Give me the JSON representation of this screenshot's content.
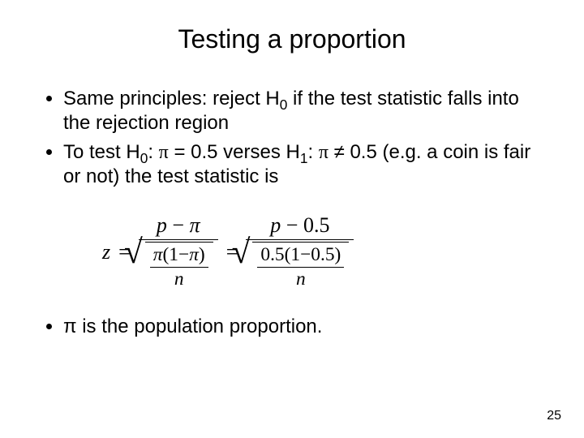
{
  "title": "Testing a proportion",
  "bullets": {
    "b1a": "Same principles: reject H",
    "b1sub": "0",
    "b1b": " if the test statistic falls into the rejection region",
    "b2a": "To test H",
    "b2sub1": "0",
    "b2b": ": ",
    "b2pi1": "π",
    "b2c": " = 0.5 verses H",
    "b2sub2": "1",
    "b2d": ": ",
    "b2pi2": "π",
    "b2ne": " ≠ ",
    "b2e": "0.5 (e.g. a coin is fair or not) the test statistic is",
    "b3a": "π is the population proportion."
  },
  "formula": {
    "z": "z",
    "eq": "=",
    "num1a": "p",
    "minus": "−",
    "num1b": "π",
    "den1a": "π",
    "den1b": "(1−",
    "den1c": "π",
    "den1d": ")",
    "n": "n",
    "num2a": "p",
    "num2b": "0.5",
    "den2a": "0.5(1−0.5)"
  },
  "slidenum": "25",
  "colors": {
    "bg": "#ffffff",
    "fg": "#000000"
  }
}
